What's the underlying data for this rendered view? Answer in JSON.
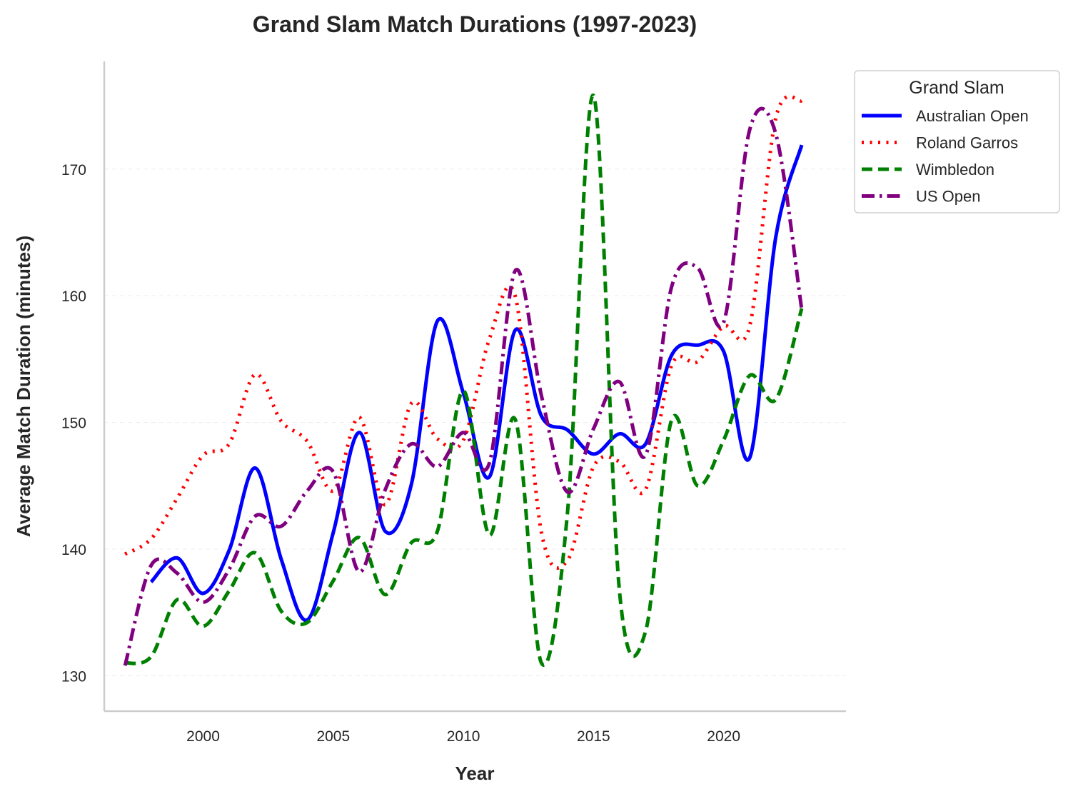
{
  "chart_data": {
    "type": "line",
    "title": "Grand Slam Match Durations (1997-2023)",
    "xlabel": "Year",
    "ylabel": "Average Match Duration (minutes)",
    "xlim": [
      1996.2,
      2024.7
    ],
    "ylim": [
      127.2,
      178.5
    ],
    "xticks": [
      2000,
      2005,
      2010,
      2015,
      2020
    ],
    "yticks": [
      130,
      140,
      150,
      160,
      170
    ],
    "grid": "horizontal dashed",
    "legend": {
      "title": "Grand Slam",
      "placement": "outside top-right"
    },
    "series": [
      {
        "name": "Australian Open",
        "color": "#0000ff",
        "style": "solid",
        "x": [
          1998,
          1999,
          2000,
          2001,
          2002,
          2003,
          2004,
          2005,
          2006,
          2007,
          2008,
          2009,
          2010,
          2011,
          2012,
          2013,
          2014,
          2015,
          2016,
          2017,
          2018,
          2019,
          2020,
          2021,
          2022,
          2023
        ],
        "values": [
          137.4,
          139.3,
          136.5,
          139.9,
          146.4,
          139.2,
          134.4,
          141.3,
          149.2,
          141.4,
          145.1,
          158.0,
          152.3,
          145.7,
          157.3,
          150.5,
          149.4,
          147.5,
          149.1,
          148.3,
          155.3,
          156.1,
          155.6,
          147.2,
          164.6,
          171.9
        ]
      },
      {
        "name": "Roland Garros",
        "color": "#ff0000",
        "style": "dotted",
        "x": [
          1997,
          1998,
          1999,
          2000,
          2001,
          2002,
          2003,
          2004,
          2005,
          2006,
          2007,
          2008,
          2009,
          2010,
          2011,
          2012,
          2013,
          2014,
          2015,
          2016,
          2017,
          2018,
          2019,
          2020,
          2021,
          2022,
          2023
        ],
        "values": [
          139.6,
          140.8,
          144.0,
          147.4,
          148.3,
          153.8,
          150.1,
          148.5,
          144.6,
          150.4,
          143.5,
          151.5,
          148.7,
          148.6,
          156.6,
          159.9,
          141.3,
          139.1,
          146.5,
          146.9,
          144.7,
          154.5,
          154.8,
          157.6,
          157.6,
          174.0,
          175.4
        ]
      },
      {
        "name": "Wimbledon",
        "color": "#008000",
        "style": "dashed",
        "x": [
          1997,
          1998,
          1999,
          2000,
          2001,
          2002,
          2003,
          2004,
          2005,
          2006,
          2007,
          2008,
          2009,
          2010,
          2011,
          2012,
          2013,
          2014,
          2015,
          2016,
          2017,
          2018,
          2019,
          2020,
          2021,
          2022,
          2023
        ],
        "values": [
          131.0,
          131.5,
          136.0,
          133.9,
          136.7,
          139.7,
          135.1,
          134.2,
          137.5,
          140.9,
          136.4,
          140.5,
          141.4,
          152.5,
          141.1,
          150.2,
          131.0,
          142.9,
          175.8,
          136.6,
          133.5,
          150.2,
          145.0,
          148.6,
          153.7,
          151.8,
          159.0
        ]
      },
      {
        "name": "US Open",
        "color": "#800080",
        "style": "dashdot",
        "x": [
          1997,
          1998,
          1999,
          2000,
          2001,
          2002,
          2003,
          2004,
          2005,
          2006,
          2007,
          2008,
          2009,
          2010,
          2011,
          2012,
          2013,
          2014,
          2015,
          2016,
          2017,
          2018,
          2019,
          2020,
          2021,
          2022,
          2023
        ],
        "values": [
          130.8,
          138.7,
          138.1,
          135.8,
          138.4,
          142.6,
          141.8,
          144.6,
          146.1,
          138.2,
          144.7,
          148.3,
          146.5,
          149.2,
          146.8,
          162.0,
          152.1,
          144.5,
          149.5,
          153.2,
          147.4,
          160.7,
          162.2,
          157.9,
          173.1,
          172.8,
          158.9
        ]
      }
    ]
  }
}
